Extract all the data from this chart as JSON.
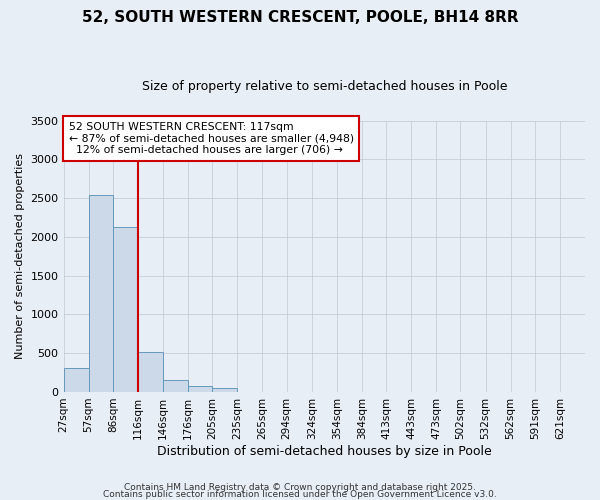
{
  "title": "52, SOUTH WESTERN CRESCENT, POOLE, BH14 8RR",
  "subtitle": "Size of property relative to semi-detached houses in Poole",
  "xlabel": "Distribution of semi-detached houses by size in Poole",
  "ylabel": "Number of semi-detached properties",
  "bin_labels": [
    "27sqm",
    "57sqm",
    "86sqm",
    "116sqm",
    "146sqm",
    "176sqm",
    "205sqm",
    "235sqm",
    "265sqm",
    "294sqm",
    "324sqm",
    "354sqm",
    "384sqm",
    "413sqm",
    "443sqm",
    "473sqm",
    "502sqm",
    "532sqm",
    "562sqm",
    "591sqm",
    "621sqm"
  ],
  "bin_edges": [
    27,
    57,
    86,
    116,
    146,
    176,
    205,
    235,
    265,
    294,
    324,
    354,
    384,
    413,
    443,
    473,
    502,
    532,
    562,
    591,
    621
  ],
  "bar_values": [
    305,
    2540,
    2130,
    520,
    155,
    80,
    50,
    0,
    0,
    0,
    0,
    0,
    0,
    0,
    0,
    0,
    0,
    0,
    0,
    0
  ],
  "bar_color": "#ccd9e8",
  "bar_edge_color": "#6699bb",
  "grid_color": "#c0c8d4",
  "background_color": "#e8eef5",
  "property_line_x": 116,
  "property_line_color": "#cc0000",
  "annotation_line1": "52 SOUTH WESTERN CRESCENT: 117sqm",
  "annotation_line2": "← 87% of semi-detached houses are smaller (4,948)",
  "annotation_line3": "  12% of semi-detached houses are larger (706) →",
  "annotation_box_color": "#ffffff",
  "annotation_border_color": "#cc0000",
  "ylim": [
    0,
    3500
  ],
  "yticks": [
    0,
    500,
    1000,
    1500,
    2000,
    2500,
    3000,
    3500
  ],
  "footnote1": "Contains HM Land Registry data © Crown copyright and database right 2025.",
  "footnote2": "Contains public sector information licensed under the Open Government Licence v3.0."
}
